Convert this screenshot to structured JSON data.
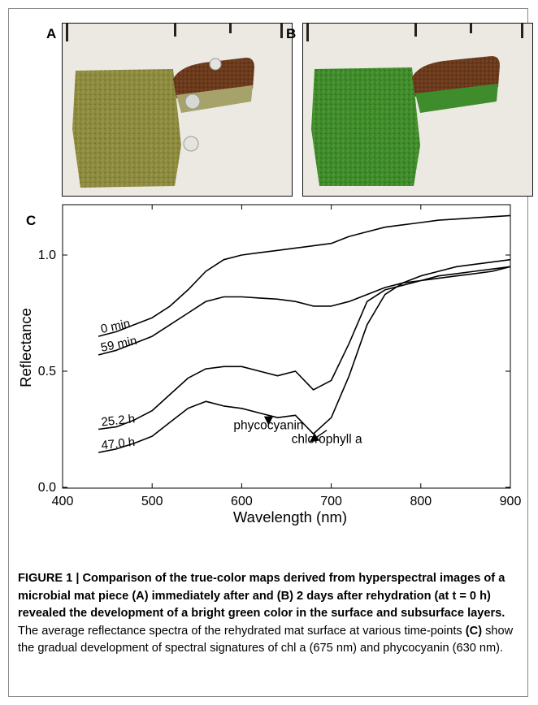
{
  "panels": {
    "a_label": "A",
    "b_label": "B",
    "c_label": "C"
  },
  "colors": {
    "mat_a": "#8c8a3e",
    "mat_b": "#3f8a2a",
    "crust": "#6b3a1c",
    "background": "#ece9e2"
  },
  "chart_data": {
    "type": "line",
    "xlabel": "Wavelength (nm)",
    "ylabel": "Reflectance",
    "xlim": [
      400,
      900
    ],
    "ylim": [
      0.0,
      1.2
    ],
    "xticks": [
      400,
      500,
      600,
      700,
      800,
      900
    ],
    "yticks": [
      0.0,
      0.5,
      1.0
    ],
    "ytick_labels": [
      "0.0",
      "0.5",
      "1.0"
    ],
    "x": [
      440,
      460,
      480,
      500,
      520,
      540,
      560,
      580,
      600,
      620,
      640,
      660,
      680,
      700,
      720,
      740,
      760,
      780,
      800,
      820,
      840,
      860,
      880,
      900
    ],
    "series": [
      {
        "name": "0 min",
        "values": [
          0.65,
          0.67,
          0.7,
          0.73,
          0.78,
          0.85,
          0.93,
          0.98,
          1.0,
          1.01,
          1.02,
          1.03,
          1.04,
          1.05,
          1.08,
          1.1,
          1.12,
          1.13,
          1.14,
          1.15,
          1.155,
          1.16,
          1.165,
          1.17
        ]
      },
      {
        "name": "59 min",
        "values": [
          0.57,
          0.59,
          0.62,
          0.65,
          0.7,
          0.75,
          0.8,
          0.82,
          0.82,
          0.815,
          0.81,
          0.8,
          0.78,
          0.78,
          0.8,
          0.83,
          0.86,
          0.88,
          0.89,
          0.9,
          0.91,
          0.92,
          0.93,
          0.95
        ]
      },
      {
        "name": "25.2 h",
        "values": [
          0.25,
          0.26,
          0.29,
          0.33,
          0.4,
          0.47,
          0.51,
          0.52,
          0.52,
          0.5,
          0.48,
          0.5,
          0.42,
          0.46,
          0.62,
          0.8,
          0.85,
          0.87,
          0.89,
          0.91,
          0.92,
          0.93,
          0.94,
          0.95
        ]
      },
      {
        "name": "47.0 h",
        "values": [
          0.15,
          0.165,
          0.19,
          0.22,
          0.28,
          0.34,
          0.37,
          0.35,
          0.34,
          0.32,
          0.3,
          0.31,
          0.23,
          0.3,
          0.48,
          0.7,
          0.83,
          0.88,
          0.91,
          0.93,
          0.95,
          0.96,
          0.97,
          0.98
        ]
      }
    ],
    "annotations": [
      {
        "text": "phycocyanin",
        "x": 630,
        "y": 0.25,
        "arrow_to": [
          630,
          0.3
        ]
      },
      {
        "text": "chlorophyll a",
        "x": 695,
        "y": 0.19,
        "arrow_to": [
          680,
          0.22
        ]
      }
    ]
  },
  "caption": {
    "heading": "FIGURE 1 | Comparison of the true-color maps derived from hyperspectral images of a microbial mat piece (A) immediately after and (B) 2 days after rehydration (at t = 0 h) revealed the development of a bright green color in the surface and subsurface layers.",
    "body_part1": " The average reflectance spectra of the rehydrated mat surface at various time-points ",
    "body_bold_c": "(C)",
    "body_part2": " show the gradual development of spectral signatures of chl a (675 nm) and phycocyanin (630 nm)."
  }
}
